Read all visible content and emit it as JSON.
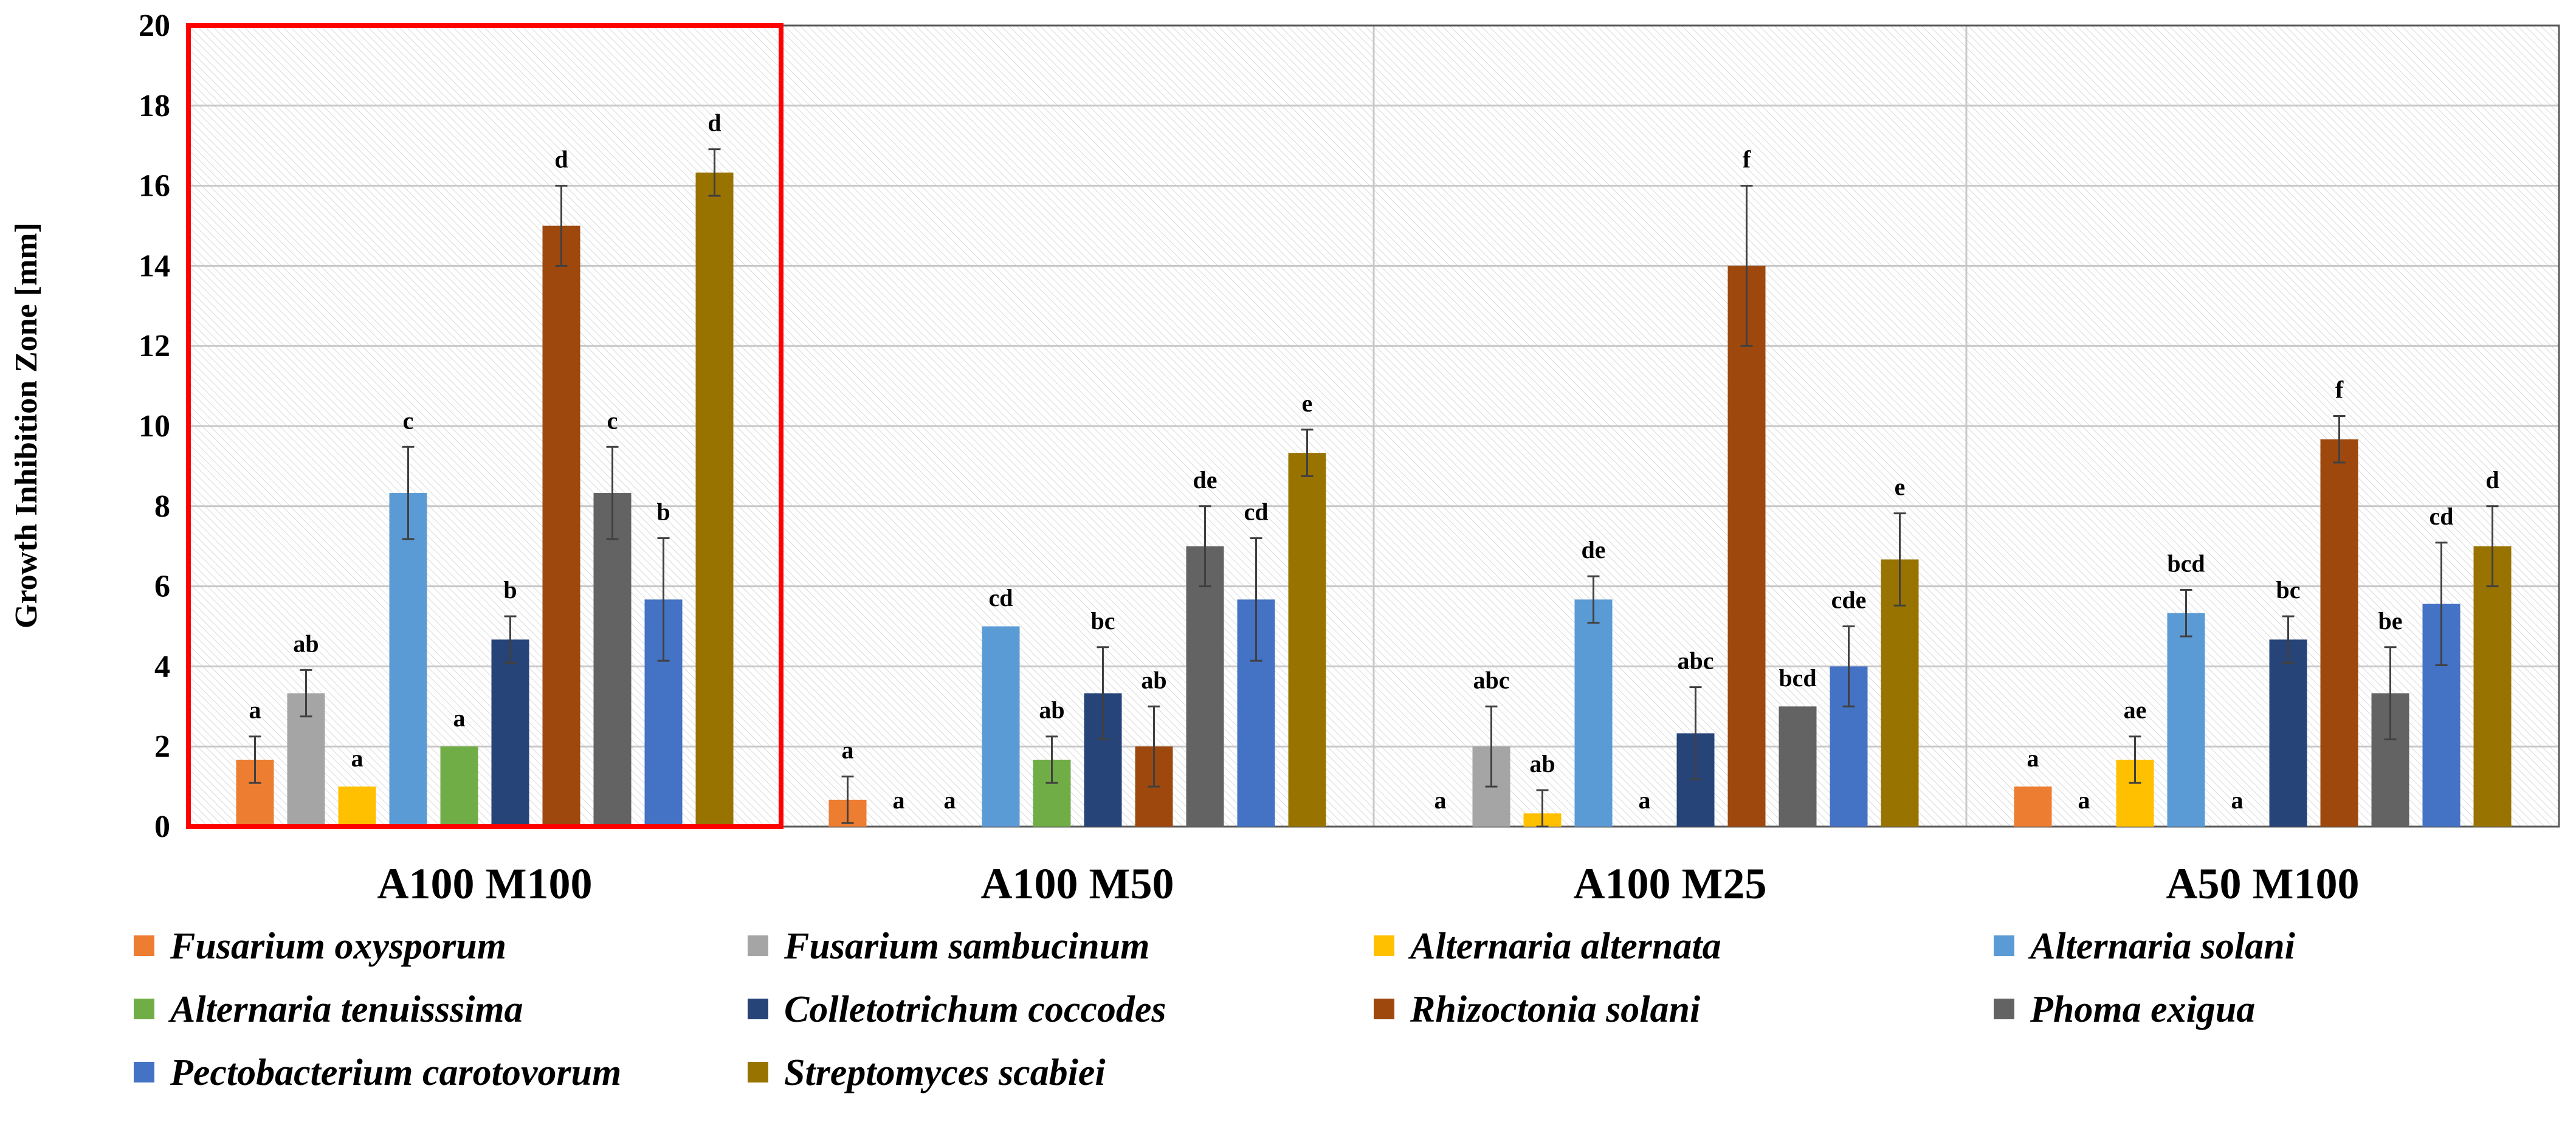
{
  "chart_data": {
    "type": "bar",
    "title": "",
    "xlabel": "",
    "ylabel": "Growth Inhibition  Zone [mm]",
    "ylim": [
      0,
      20
    ],
    "yticks": [
      "0",
      "2",
      "4",
      "6",
      "8",
      "10",
      "12",
      "14",
      "16",
      "18",
      "20"
    ],
    "categories": [
      "A100 M100",
      "A100 M50",
      "A100 M25",
      "A50 M100"
    ],
    "highlighted_category": "A100 M100",
    "series": [
      {
        "name": "Fusarium oxysporum",
        "color": "#ED7D31",
        "values": [
          1.67,
          0.67,
          0,
          1.0
        ],
        "errors": [
          0.58,
          0.58,
          0,
          0.05
        ],
        "labels": [
          "a",
          "a",
          "a",
          "a"
        ]
      },
      {
        "name": "Fusarium sambucinum",
        "color": "#A5A5A5",
        "values": [
          3.33,
          0,
          2.0,
          0
        ],
        "errors": [
          0.58,
          0,
          1.0,
          0
        ],
        "labels": [
          "ab",
          "a",
          "abc",
          "a"
        ]
      },
      {
        "name": "Alternaria alternata",
        "color": "#FFC000",
        "values": [
          1.0,
          0,
          0.33,
          1.67
        ],
        "errors": [
          0.05,
          0,
          0.58,
          0.58
        ],
        "labels": [
          "a",
          "a",
          "ab",
          "ae"
        ]
      },
      {
        "name": "Alternaria solani",
        "color": "#5B9BD5",
        "values": [
          8.33,
          5.0,
          5.67,
          5.33
        ],
        "errors": [
          1.15,
          0.05,
          0.58,
          0.58
        ],
        "labels": [
          "c",
          "cd",
          "de",
          "bcd"
        ]
      },
      {
        "name": "Alternaria tenuisssima",
        "color": "#70AD47",
        "values": [
          2.0,
          1.67,
          0,
          0
        ],
        "errors": [
          0.05,
          0.58,
          0,
          0
        ],
        "labels": [
          "a",
          "ab",
          "a",
          "a"
        ]
      },
      {
        "name": "Colletotrichum coccodes",
        "color": "#264478",
        "values": [
          4.67,
          3.33,
          2.33,
          4.67
        ],
        "errors": [
          0.58,
          1.15,
          1.15,
          0.58
        ],
        "labels": [
          "b",
          "bc",
          "abc",
          "bc"
        ]
      },
      {
        "name": "Rhizoctonia solani",
        "color": "#9E480E",
        "values": [
          15.0,
          2.0,
          14.0,
          9.67
        ],
        "errors": [
          1.0,
          1.0,
          2.0,
          0.58
        ],
        "labels": [
          "d",
          "ab",
          "f",
          "f"
        ]
      },
      {
        "name": "Phoma exigua",
        "color": "#636363",
        "values": [
          8.33,
          7.0,
          3.0,
          3.33
        ],
        "errors": [
          1.15,
          1.0,
          0.05,
          1.15
        ],
        "labels": [
          "c",
          "de",
          "bcd",
          "be"
        ]
      },
      {
        "name": "Pectobacterium carotovorum",
        "color": "#4472C4",
        "values": [
          5.67,
          5.67,
          4.0,
          5.56
        ],
        "errors": [
          1.53,
          1.53,
          1.0,
          1.53
        ],
        "labels": [
          "b",
          "cd",
          "cde",
          "cd"
        ]
      },
      {
        "name": "Streptomyces scabiei",
        "color": "#997300",
        "values": [
          16.33,
          9.33,
          6.67,
          7.0
        ],
        "errors": [
          0.58,
          0.58,
          1.15,
          1.0
        ],
        "labels": [
          "d",
          "e",
          "e",
          "d"
        ]
      }
    ]
  }
}
